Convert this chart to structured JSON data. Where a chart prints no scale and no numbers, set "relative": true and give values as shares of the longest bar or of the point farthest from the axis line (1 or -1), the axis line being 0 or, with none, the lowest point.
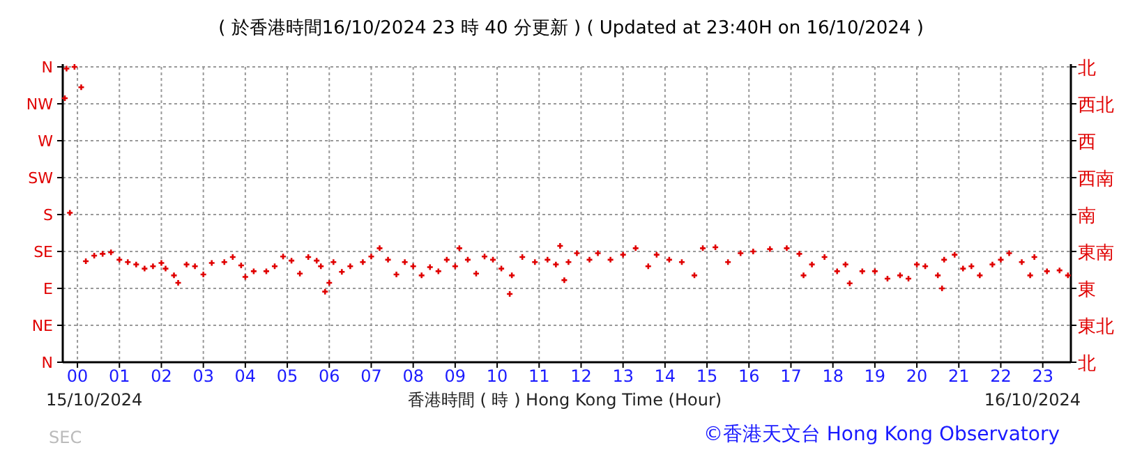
{
  "chart_data": {
    "type": "scatter",
    "title": "( 於香港時間16/10/2024 23 時 40 分更新 ) ( Updated at 23:40H on 16/10/2024 )",
    "xlabel": "香港時間 ( 時 ) Hong Kong Time (Hour)",
    "annotations": [
      "15/10/2024",
      "16/10/2024",
      "SEC",
      "©香港天文台 Hong Kong Observatory",
      "N",
      "NE",
      "E",
      "SE",
      "S",
      "SW",
      "W",
      "NW",
      "N",
      "北",
      "東北",
      "東",
      "東南",
      "南",
      "西南",
      "西",
      "西北",
      "北"
    ],
    "xlim": [
      -0.35,
      23.67
    ],
    "xticks": [
      {
        "value": 0,
        "label": "00"
      },
      {
        "value": 1,
        "label": "01"
      },
      {
        "value": 2,
        "label": "02"
      },
      {
        "value": 3,
        "label": "03"
      },
      {
        "value": 4,
        "label": "04"
      },
      {
        "value": 5,
        "label": "05"
      },
      {
        "value": 6,
        "label": "06"
      },
      {
        "value": 7,
        "label": "07"
      },
      {
        "value": 8,
        "label": "08"
      },
      {
        "value": 9,
        "label": "09"
      },
      {
        "value": 10,
        "label": "10"
      },
      {
        "value": 11,
        "label": "11"
      },
      {
        "value": 12,
        "label": "12"
      },
      {
        "value": 13,
        "label": "13"
      },
      {
        "value": 14,
        "label": "14"
      },
      {
        "value": 15,
        "label": "15"
      },
      {
        "value": 16,
        "label": "16"
      },
      {
        "value": 17,
        "label": "17"
      },
      {
        "value": 18,
        "label": "18"
      },
      {
        "value": 19,
        "label": "19"
      },
      {
        "value": 20,
        "label": "20"
      },
      {
        "value": 21,
        "label": "21"
      },
      {
        "value": 22,
        "label": "22"
      },
      {
        "value": 23,
        "label": "23"
      }
    ],
    "relative": true,
    "grid": true,
    "marker": "cross",
    "series": [
      {
        "color": "#e00000",
        "x": [
          -0.3,
          -0.26,
          -0.18,
          -0.07,
          0.09,
          0.2,
          0.4,
          0.6,
          0.8,
          1.0,
          1.2,
          1.4,
          1.6,
          1.8,
          2.0,
          2.1,
          2.3,
          2.4,
          2.6,
          2.8,
          3.0,
          3.2,
          3.5,
          3.7,
          3.9,
          4.0,
          4.2,
          4.5,
          4.7,
          4.9,
          5.1,
          5.3,
          5.5,
          5.7,
          5.8,
          5.9,
          6.0,
          6.1,
          6.3,
          6.5,
          6.8,
          7.0,
          7.2,
          7.4,
          7.6,
          7.8,
          8.0,
          8.2,
          8.4,
          8.6,
          8.8,
          9.0,
          9.1,
          9.3,
          9.5,
          9.7,
          9.9,
          10.1,
          10.3,
          10.35,
          10.6,
          10.9,
          11.2,
          11.4,
          11.5,
          11.6,
          11.7,
          11.9,
          12.2,
          12.4,
          12.7,
          13.0,
          13.3,
          13.6,
          13.8,
          14.1,
          14.4,
          14.7,
          14.9,
          15.2,
          15.5,
          15.8,
          16.1,
          16.5,
          16.9,
          17.2,
          17.3,
          17.5,
          17.8,
          18.1,
          18.3,
          18.4,
          18.7,
          19.0,
          19.3,
          19.6,
          19.8,
          20.0,
          20.2,
          20.5,
          20.6,
          20.65,
          20.9,
          21.1,
          21.3,
          21.5,
          21.8,
          22.0,
          22.2,
          22.5,
          22.7,
          22.8,
          23.1,
          23.4,
          23.6
        ],
        "values": [
          0.894,
          0.994,
          0.506,
          1,
          0.931,
          0.342,
          0.361,
          0.367,
          0.372,
          0.347,
          0.339,
          0.331,
          0.317,
          0.325,
          0.336,
          0.317,
          0.294,
          0.269,
          0.331,
          0.325,
          0.297,
          0.336,
          0.339,
          0.356,
          0.328,
          0.289,
          0.308,
          0.308,
          0.325,
          0.358,
          0.344,
          0.3,
          0.356,
          0.344,
          0.325,
          0.239,
          0.269,
          0.339,
          0.306,
          0.325,
          0.339,
          0.358,
          0.386,
          0.347,
          0.297,
          0.339,
          0.325,
          0.294,
          0.322,
          0.308,
          0.347,
          0.325,
          0.386,
          0.347,
          0.3,
          0.358,
          0.347,
          0.317,
          0.231,
          0.294,
          0.356,
          0.339,
          0.347,
          0.331,
          0.394,
          0.278,
          0.339,
          0.369,
          0.347,
          0.369,
          0.347,
          0.364,
          0.386,
          0.325,
          0.364,
          0.347,
          0.339,
          0.294,
          0.386,
          0.389,
          0.339,
          0.369,
          0.375,
          0.383,
          0.386,
          0.367,
          0.294,
          0.331,
          0.356,
          0.308,
          0.331,
          0.267,
          0.308,
          0.308,
          0.283,
          0.294,
          0.283,
          0.331,
          0.325,
          0.294,
          0.25,
          0.347,
          0.364,
          0.317,
          0.325,
          0.294,
          0.331,
          0.347,
          0.369,
          0.339,
          0.294,
          0.356,
          0.308,
          0.311,
          0.294
        ]
      }
    ]
  }
}
